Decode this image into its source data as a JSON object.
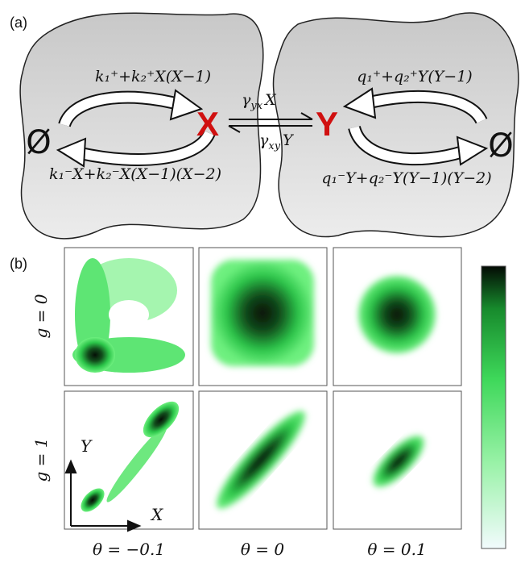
{
  "panel_a": {
    "label": "(a)",
    "left": {
      "species": "X",
      "empty": "Ø",
      "upper_rate": "k₁⁺+k₂⁺X(X−1)",
      "lower_rate": "k₁⁻X+k₂⁻X(X−1)(X−2)"
    },
    "right": {
      "species": "Y",
      "empty": "Ø",
      "upper_rate": "q₁⁺+q₂⁺Y(Y−1)",
      "lower_rate": "q₁⁻Y+q₂⁻Y(Y−1)(Y−2)"
    },
    "forward": {
      "symbol": "γ",
      "sub": "yx",
      "rest": "X"
    },
    "backward": {
      "symbol": "γ",
      "sub": "xy",
      "rest": "Y"
    }
  },
  "panel_b": {
    "label": "(b)",
    "rows": [
      "g = 0",
      "g = 1"
    ],
    "columns": [
      "θ = −0.1",
      "θ = 0",
      "θ = 0.1"
    ],
    "x_axis": "X",
    "y_axis": "Y"
  }
}
